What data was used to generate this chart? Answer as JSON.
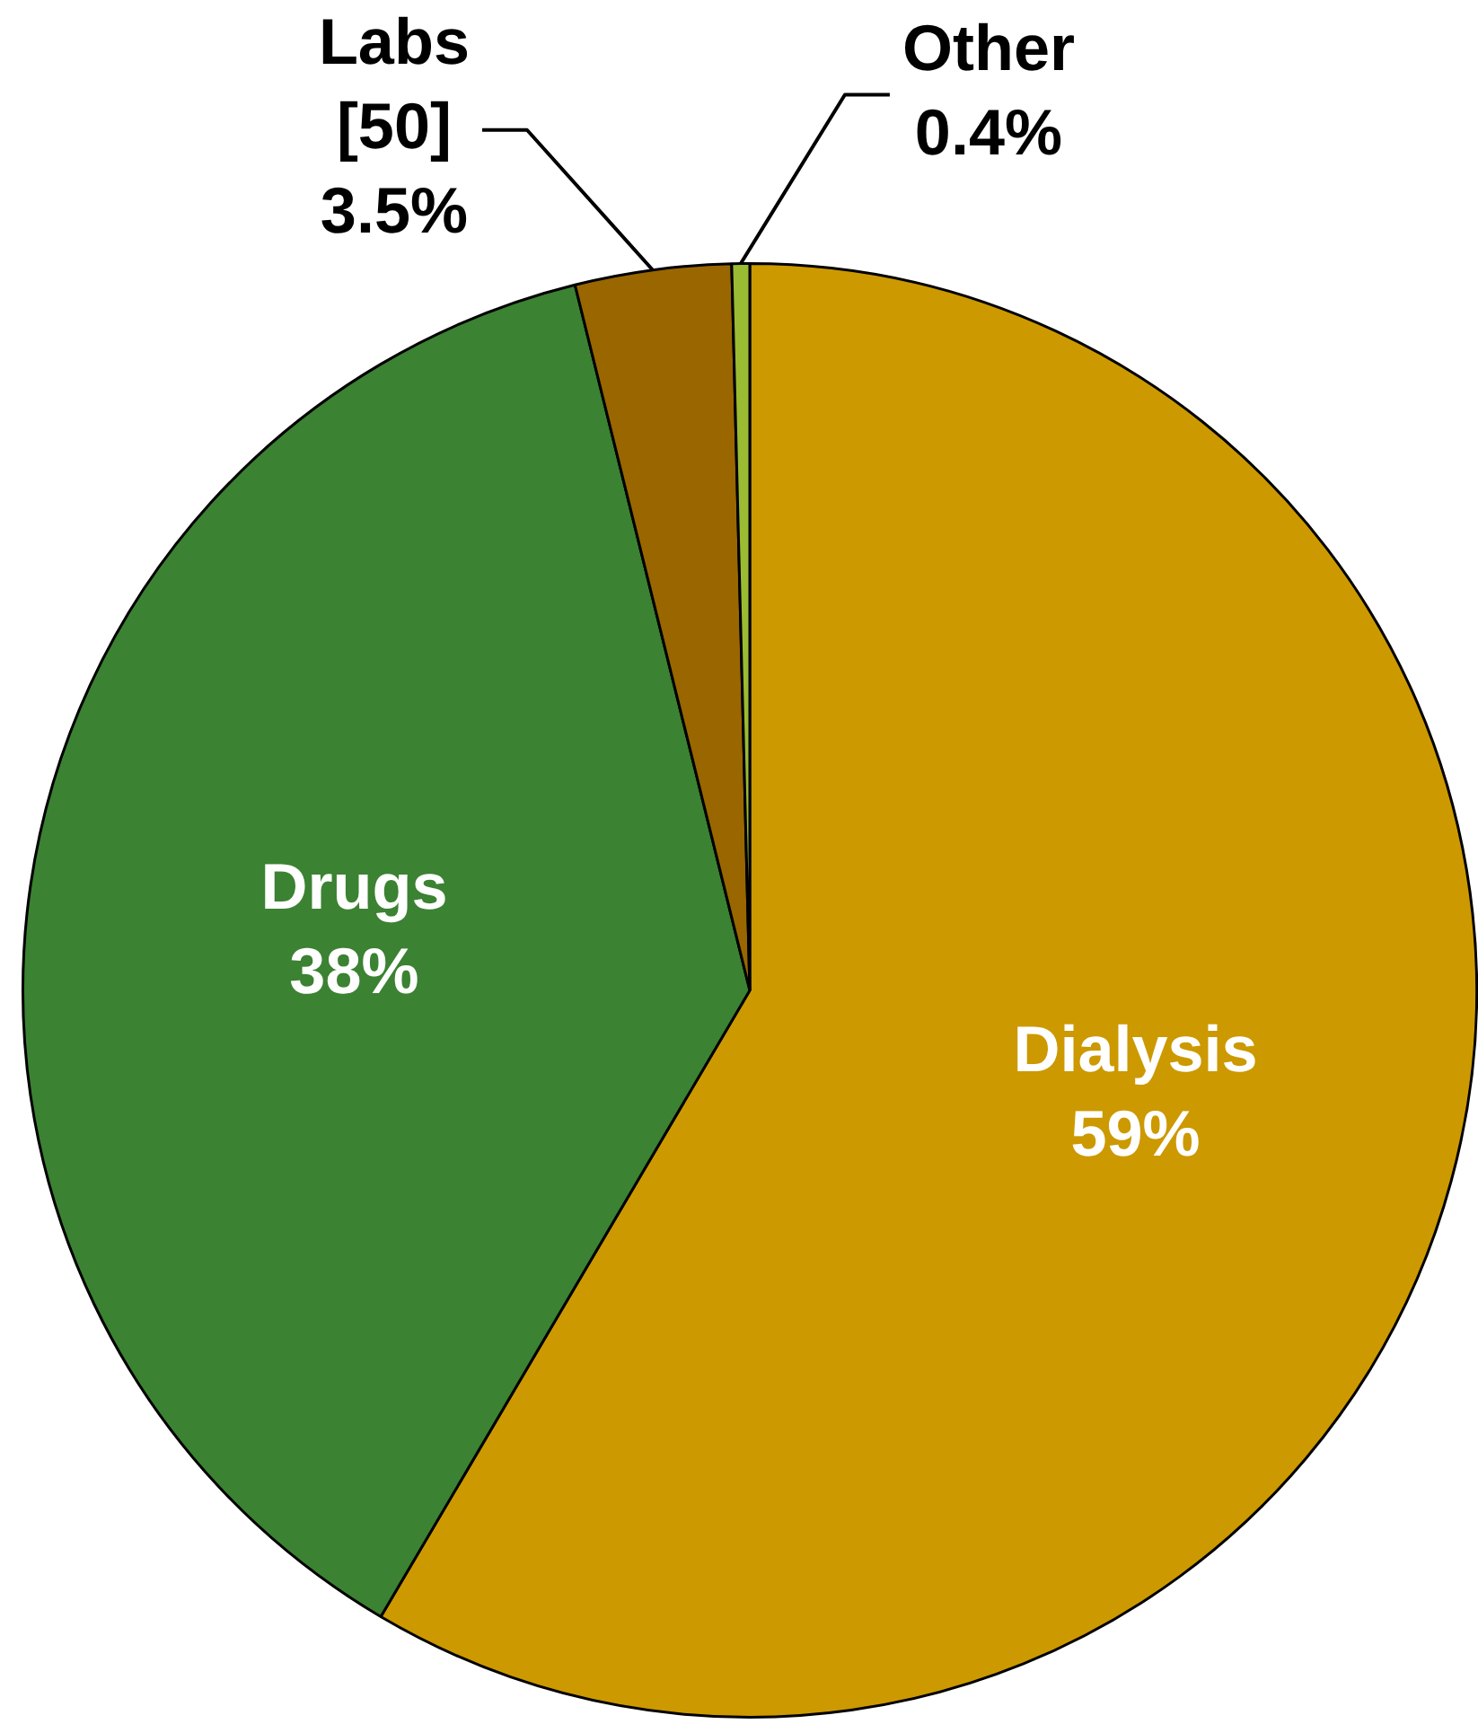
{
  "chart_data": {
    "type": "pie",
    "categories": [
      "Dialysis",
      "Drugs",
      "Labs [50]",
      "Other"
    ],
    "values": [
      59,
      38,
      3.5,
      0.4
    ],
    "colors": [
      "#cc9900",
      "#3b8232",
      "#996600",
      "#9bbb33"
    ],
    "value_labels": [
      "59%",
      "38%",
      "3.5%",
      "0.4%"
    ]
  }
}
